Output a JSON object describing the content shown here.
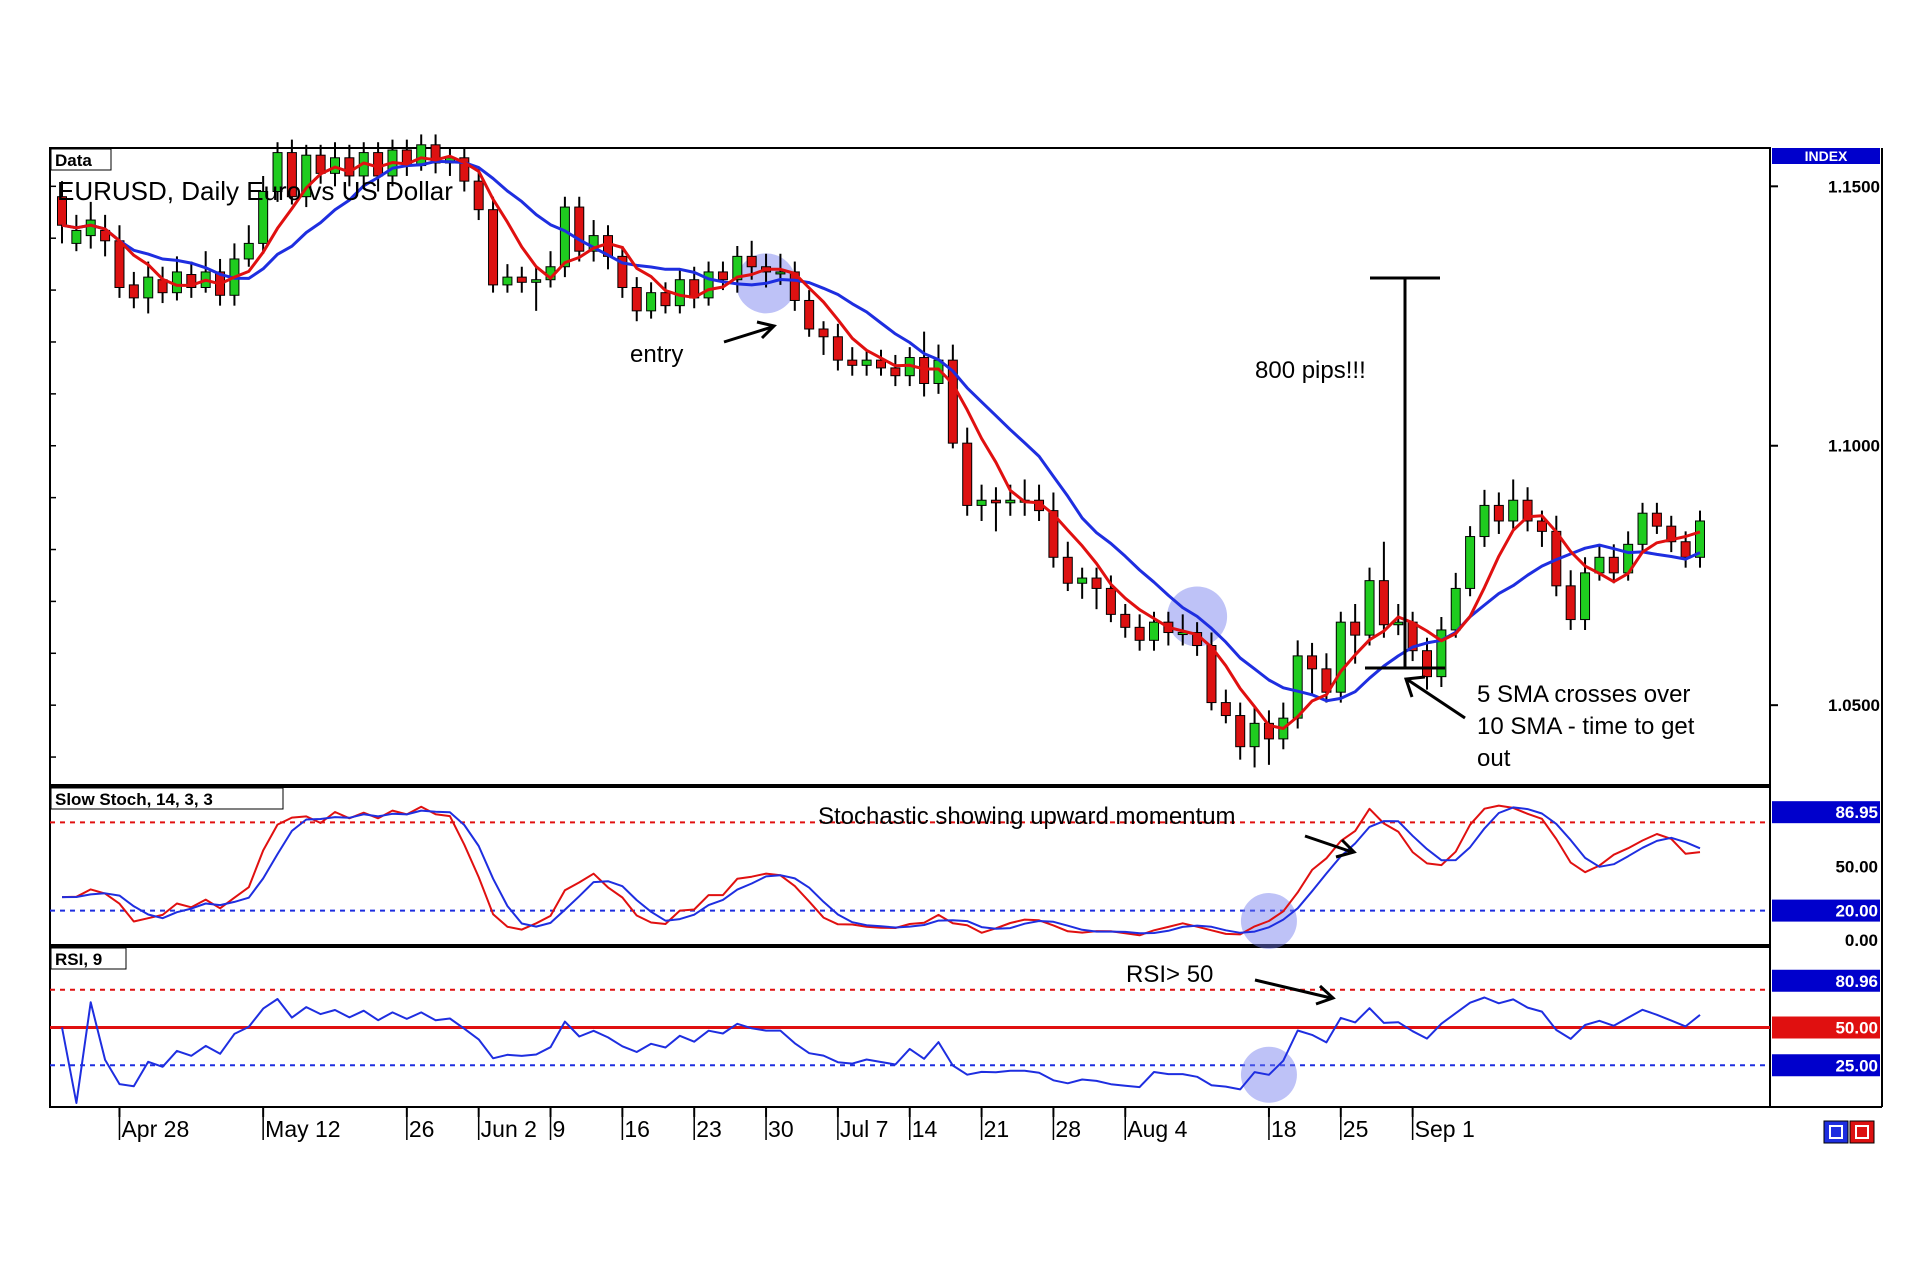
{
  "chart_data": {
    "type": "candlestick",
    "panels": {
      "price": {
        "corner_label": "Data",
        "title": "EURUSD, Daily  Euro vs US Dollar",
        "index_label": "INDEX",
        "y_ticks": [
          {
            "value": 1.15,
            "label": "1.1500"
          },
          {
            "value": 1.1,
            "label": "1.1000"
          },
          {
            "value": 1.05,
            "label": "1.0500"
          }
        ],
        "ylim": [
          1.035,
          1.157
        ],
        "series": [
          {
            "name": "5 SMA",
            "color": "#e01010"
          },
          {
            "name": "10 SMA",
            "color": "#1e2ee0"
          }
        ],
        "candles": [
          [
            1.148,
            1.1425,
            1.151,
            1.139
          ],
          [
            1.139,
            1.1415,
            1.1445,
            1.1375
          ],
          [
            1.1405,
            1.1435,
            1.147,
            1.138
          ],
          [
            1.1415,
            1.1395,
            1.1445,
            1.1365
          ],
          [
            1.1395,
            1.1305,
            1.1425,
            1.1285
          ],
          [
            1.131,
            1.1285,
            1.1335,
            1.1265
          ],
          [
            1.1285,
            1.1325,
            1.1355,
            1.1255
          ],
          [
            1.132,
            1.1295,
            1.1345,
            1.1275
          ],
          [
            1.1295,
            1.1335,
            1.1365,
            1.128
          ],
          [
            1.133,
            1.1305,
            1.1355,
            1.1285
          ],
          [
            1.1305,
            1.1335,
            1.1375,
            1.1295
          ],
          [
            1.1335,
            1.129,
            1.136,
            1.127
          ],
          [
            1.129,
            1.136,
            1.139,
            1.127
          ],
          [
            1.136,
            1.139,
            1.1425,
            1.1345
          ],
          [
            1.139,
            1.149,
            1.152,
            1.137
          ],
          [
            1.149,
            1.1565,
            1.1585,
            1.147
          ],
          [
            1.1565,
            1.148,
            1.159,
            1.1465
          ],
          [
            1.148,
            1.156,
            1.158,
            1.146
          ],
          [
            1.156,
            1.1525,
            1.158,
            1.1505
          ],
          [
            1.1525,
            1.1555,
            1.1585,
            1.15
          ],
          [
            1.1555,
            1.152,
            1.158,
            1.15
          ],
          [
            1.152,
            1.1565,
            1.1585,
            1.1495
          ],
          [
            1.1565,
            1.152,
            1.1585,
            1.149
          ],
          [
            1.152,
            1.157,
            1.159,
            1.15
          ],
          [
            1.157,
            1.154,
            1.159,
            1.152
          ],
          [
            1.154,
            1.158,
            1.16,
            1.153
          ],
          [
            1.158,
            1.1545,
            1.16,
            1.1525
          ],
          [
            1.1545,
            1.1555,
            1.1575,
            1.152
          ],
          [
            1.1555,
            1.151,
            1.1575,
            1.149
          ],
          [
            1.151,
            1.1455,
            1.1535,
            1.1435
          ],
          [
            1.1455,
            1.131,
            1.148,
            1.1295
          ],
          [
            1.131,
            1.1325,
            1.135,
            1.1295
          ],
          [
            1.1325,
            1.1315,
            1.1345,
            1.1295
          ],
          [
            1.1315,
            1.132,
            1.1345,
            1.126
          ],
          [
            1.132,
            1.1345,
            1.1375,
            1.1305
          ],
          [
            1.1345,
            1.146,
            1.148,
            1.1325
          ],
          [
            1.146,
            1.1375,
            1.148,
            1.1355
          ],
          [
            1.1375,
            1.1405,
            1.1435,
            1.1355
          ],
          [
            1.1405,
            1.1365,
            1.1425,
            1.134
          ],
          [
            1.1365,
            1.1305,
            1.1385,
            1.1285
          ],
          [
            1.1305,
            1.126,
            1.1325,
            1.124
          ],
          [
            1.126,
            1.1295,
            1.1315,
            1.1245
          ],
          [
            1.1295,
            1.127,
            1.1315,
            1.1255
          ],
          [
            1.127,
            1.132,
            1.134,
            1.1255
          ],
          [
            1.132,
            1.1285,
            1.1345,
            1.1265
          ],
          [
            1.1285,
            1.1335,
            1.1355,
            1.127
          ],
          [
            1.1335,
            1.132,
            1.1355,
            1.13
          ],
          [
            1.132,
            1.1365,
            1.1385,
            1.1295
          ],
          [
            1.1365,
            1.1345,
            1.1395,
            1.132
          ],
          [
            1.1345,
            1.1335,
            1.137,
            1.1305
          ],
          [
            1.1335,
            1.1335,
            1.137,
            1.131
          ],
          [
            1.1335,
            1.128,
            1.1355,
            1.126
          ],
          [
            1.128,
            1.1225,
            1.13,
            1.121
          ],
          [
            1.1225,
            1.121,
            1.124,
            1.1175
          ],
          [
            1.121,
            1.1165,
            1.1235,
            1.1145
          ],
          [
            1.1165,
            1.1155,
            1.119,
            1.1135
          ],
          [
            1.1155,
            1.1165,
            1.1185,
            1.1135
          ],
          [
            1.1165,
            1.115,
            1.1185,
            1.1135
          ],
          [
            1.115,
            1.1135,
            1.1175,
            1.1115
          ],
          [
            1.1135,
            1.117,
            1.119,
            1.1115
          ],
          [
            1.117,
            1.112,
            1.122,
            1.1095
          ],
          [
            1.112,
            1.1165,
            1.1195,
            1.11
          ],
          [
            1.1165,
            1.1005,
            1.1195,
            1.0995
          ],
          [
            1.1005,
            1.0885,
            1.1035,
            1.0865
          ],
          [
            1.0885,
            1.0895,
            1.0925,
            1.0855
          ],
          [
            1.0895,
            1.089,
            1.092,
            1.0835
          ],
          [
            1.089,
            1.0895,
            1.0925,
            1.0865
          ],
          [
            1.0895,
            1.0895,
            1.0935,
            1.0865
          ],
          [
            1.0895,
            1.0875,
            1.0925,
            1.0855
          ],
          [
            1.0875,
            1.0785,
            1.091,
            1.0765
          ],
          [
            1.0785,
            1.0735,
            1.0815,
            1.072
          ],
          [
            1.0735,
            1.0745,
            1.0765,
            1.0705
          ],
          [
            1.0745,
            1.0725,
            1.0765,
            1.0685
          ],
          [
            1.0725,
            1.0675,
            1.075,
            1.066
          ],
          [
            1.0675,
            1.065,
            1.0695,
            1.063
          ],
          [
            1.065,
            1.0625,
            1.0675,
            1.0605
          ],
          [
            1.0625,
            1.066,
            1.068,
            1.0605
          ],
          [
            1.066,
            1.064,
            1.068,
            1.0615
          ],
          [
            1.064,
            1.064,
            1.0675,
            1.0615
          ],
          [
            1.064,
            1.0615,
            1.066,
            1.0595
          ],
          [
            1.0615,
            1.0505,
            1.064,
            1.049
          ],
          [
            1.0505,
            1.048,
            1.053,
            1.0465
          ],
          [
            1.048,
            1.042,
            1.0505,
            1.0395
          ],
          [
            1.042,
            1.0465,
            1.0495,
            1.038
          ],
          [
            1.0465,
            1.0435,
            1.049,
            1.0385
          ],
          [
            1.0435,
            1.0475,
            1.0505,
            1.0415
          ],
          [
            1.0475,
            1.0595,
            1.0625,
            1.0455
          ],
          [
            1.0595,
            1.057,
            1.062,
            1.052
          ],
          [
            1.057,
            1.0525,
            1.06,
            1.0505
          ],
          [
            1.0525,
            1.066,
            1.068,
            1.0505
          ],
          [
            1.066,
            1.0635,
            1.0695,
            1.058
          ],
          [
            1.0635,
            1.074,
            1.0765,
            1.0615
          ],
          [
            1.074,
            1.0655,
            1.0815,
            1.063
          ],
          [
            1.0655,
            1.066,
            1.0695,
            1.0635
          ],
          [
            1.066,
            1.0605,
            1.068,
            1.0585
          ],
          [
            1.0605,
            1.0555,
            1.063,
            1.053
          ],
          [
            1.0555,
            1.0645,
            1.067,
            1.0535
          ],
          [
            1.0645,
            1.0725,
            1.0755,
            1.063
          ],
          [
            1.0725,
            1.0825,
            1.0845,
            1.071
          ],
          [
            1.0825,
            1.0885,
            1.0915,
            1.0805
          ],
          [
            1.0885,
            1.0855,
            1.091,
            1.083
          ],
          [
            1.0855,
            1.0895,
            1.0935,
            1.084
          ],
          [
            1.0895,
            1.0855,
            1.092,
            1.0835
          ],
          [
            1.0855,
            1.0835,
            1.0875,
            1.0805
          ],
          [
            1.0835,
            1.073,
            1.0865,
            1.071
          ],
          [
            1.073,
            1.0665,
            1.076,
            1.0645
          ],
          [
            1.0665,
            1.0755,
            1.0785,
            1.0645
          ],
          [
            1.0755,
            1.0785,
            1.081,
            1.074
          ],
          [
            1.0785,
            1.0755,
            1.081,
            1.0735
          ],
          [
            1.0755,
            1.081,
            1.0835,
            1.074
          ],
          [
            1.081,
            1.087,
            1.089,
            1.0795
          ],
          [
            1.087,
            1.0845,
            1.089,
            1.083
          ],
          [
            1.0845,
            1.0815,
            1.0865,
            1.0795
          ],
          [
            1.0815,
            1.0785,
            1.0835,
            1.0765
          ],
          [
            1.0785,
            1.0855,
            1.0875,
            1.0765
          ]
        ],
        "annotations": [
          {
            "text": "entry"
          },
          {
            "text": "800 pips!!!"
          },
          {
            "text": "5 SMA crosses over"
          },
          {
            "text": "10 SMA - time to get"
          },
          {
            "text": "out"
          }
        ]
      },
      "stochastic": {
        "corner_label": "Slow Stoch, 14, 3, 3",
        "annotation": "Stochastic showing upward momentum",
        "ylim": [
          0,
          100
        ],
        "levels": {
          "upper": 80,
          "lower": 20
        },
        "y_ticks": [
          {
            "value": 50,
            "label": "50.00"
          },
          {
            "value": 0,
            "label": "0.00"
          }
        ],
        "value_badges": [
          {
            "value": 86.95,
            "label": "86.95",
            "color": "#0000cc"
          },
          {
            "value": 20,
            "label": "20.00",
            "color": "#0000cc"
          }
        ],
        "series": [
          {
            "name": "%K",
            "color": "#e01010"
          },
          {
            "name": "%D",
            "color": "#1e2ee0"
          }
        ]
      },
      "rsi": {
        "corner_label": "RSI, 9",
        "annotation": "RSI> 50",
        "ylim": [
          0,
          100
        ],
        "levels": {
          "upper": 75,
          "mid": 50,
          "lower": 25
        },
        "value_badges": [
          {
            "value": 80.96,
            "label": "80.96",
            "color": "#0000cc"
          },
          {
            "value": 50,
            "label": "50.00",
            "color": "#e01010"
          },
          {
            "value": 25,
            "label": "25.00",
            "color": "#0000cc"
          }
        ],
        "series": [
          {
            "name": "RSI",
            "color": "#1e2ee0"
          }
        ]
      }
    },
    "x_ticks": [
      {
        "index": 4,
        "label": "Apr 28"
      },
      {
        "index": 14,
        "label": "May 12"
      },
      {
        "index": 24,
        "label": "26"
      },
      {
        "index": 29,
        "label": "Jun 2"
      },
      {
        "index": 34,
        "label": "9"
      },
      {
        "index": 39,
        "label": "16"
      },
      {
        "index": 44,
        "label": "23"
      },
      {
        "index": 49,
        "label": "30"
      },
      {
        "index": 54,
        "label": "Jul 7"
      },
      {
        "index": 59,
        "label": "14"
      },
      {
        "index": 64,
        "label": "21"
      },
      {
        "index": 69,
        "label": "28"
      },
      {
        "index": 74,
        "label": "Aug 4"
      },
      {
        "index": 84,
        "label": "18"
      },
      {
        "index": 89,
        "label": "25"
      },
      {
        "index": 94,
        "label": "Sep 1"
      }
    ],
    "colors": {
      "bull": "#1fcc1f",
      "bear": "#dd1111",
      "frame": "#000000",
      "badge_bg": "#0000cc"
    }
  }
}
